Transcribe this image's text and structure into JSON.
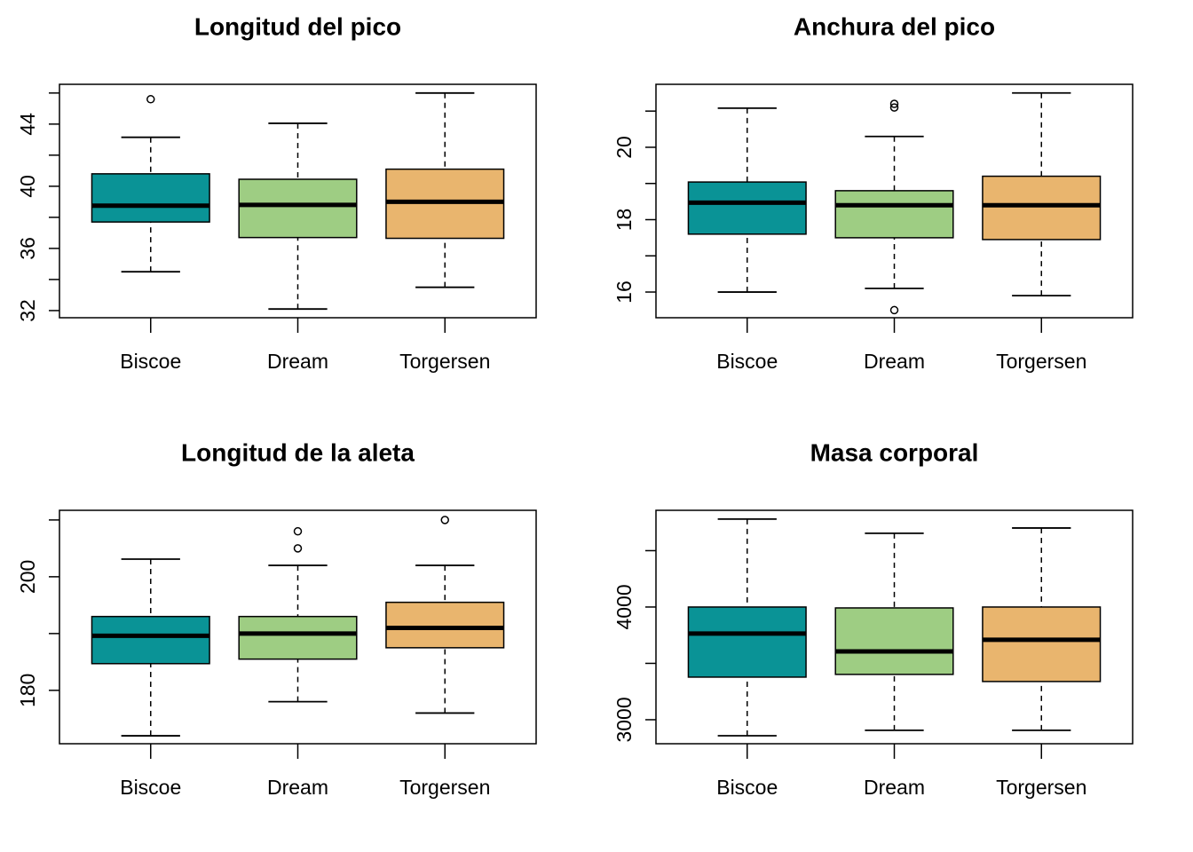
{
  "chart_data": [
    {
      "type": "box",
      "title": "Longitud del pico",
      "categories": [
        "Biscoe",
        "Dream",
        "Torgersen"
      ],
      "colors": [
        "#0a9396",
        "#9ecd83",
        "#e9b56e"
      ],
      "boxes": [
        {
          "whisker_low": 34.5,
          "q1": 37.7,
          "median": 38.75,
          "q3": 40.8,
          "whisker_high": 43.15,
          "outliers": [
            45.6
          ]
        },
        {
          "whisker_low": 32.1,
          "q1": 36.7,
          "median": 38.8,
          "q3": 40.45,
          "whisker_high": 44.05
        },
        {
          "whisker_low": 33.5,
          "q1": 36.65,
          "median": 39.0,
          "q3": 41.1,
          "whisker_high": 46.0
        }
      ],
      "ylim": [
        31.54,
        46.56
      ],
      "yticks": [
        32,
        36,
        40,
        44
      ],
      "yticks_minor": [
        34,
        38,
        42,
        46
      ]
    },
    {
      "type": "box",
      "title": "Anchura del pico",
      "categories": [
        "Biscoe",
        "Dream",
        "Torgersen"
      ],
      "colors": [
        "#0a9396",
        "#9ecd83",
        "#e9b56e"
      ],
      "boxes": [
        {
          "whisker_low": 16.0,
          "q1": 17.6,
          "median": 18.47,
          "q3": 19.04,
          "whisker_high": 21.08
        },
        {
          "whisker_low": 16.1,
          "q1": 17.5,
          "median": 18.4,
          "q3": 18.8,
          "whisker_high": 20.3,
          "outliers": [
            21.2,
            21.1,
            15.5
          ]
        },
        {
          "whisker_low": 15.9,
          "q1": 17.45,
          "median": 18.4,
          "q3": 19.2,
          "whisker_high": 21.5
        }
      ],
      "ylim": [
        15.29,
        21.74
      ],
      "yticks": [
        16,
        18,
        20
      ],
      "yticks_minor": [
        17,
        19,
        21
      ]
    },
    {
      "type": "box",
      "title": "Longitud de la aleta",
      "categories": [
        "Biscoe",
        "Dream",
        "Torgersen"
      ],
      "colors": [
        "#0a9396",
        "#9ecd83",
        "#e9b56e"
      ],
      "boxes": [
        {
          "whisker_low": 172,
          "q1": 184.7,
          "median": 189.6,
          "q3": 193,
          "whisker_high": 203.1
        },
        {
          "whisker_low": 178,
          "q1": 185.5,
          "median": 190,
          "q3": 193,
          "whisker_high": 202,
          "outliers": [
            208,
            205
          ]
        },
        {
          "whisker_low": 176,
          "q1": 187.5,
          "median": 191,
          "q3": 195.5,
          "whisker_high": 202,
          "outliers": [
            210
          ]
        }
      ],
      "ylim": [
        170.6,
        211.7
      ],
      "yticks": [
        180,
        200
      ],
      "yticks_minor": [
        190,
        210
      ]
    },
    {
      "type": "box",
      "title": "Masa corporal",
      "categories": [
        "Biscoe",
        "Dream",
        "Torgersen"
      ],
      "colors": [
        "#0a9396",
        "#9ecd83",
        "#e9b56e"
      ],
      "boxes": [
        {
          "whisker_low": 2858,
          "q1": 3378,
          "median": 3764,
          "q3": 4000,
          "whisker_high": 4780
        },
        {
          "whisker_low": 2906,
          "q1": 3402,
          "median": 3606,
          "q3": 3992,
          "whisker_high": 4654
        },
        {
          "whisker_low": 2906,
          "q1": 3339,
          "median": 3709,
          "q3": 4000,
          "whisker_high": 4701
        }
      ],
      "ylim": [
        2787,
        4858
      ],
      "yticks": [
        3000,
        4000
      ],
      "yticks_minor": [
        3500,
        4500
      ]
    }
  ]
}
